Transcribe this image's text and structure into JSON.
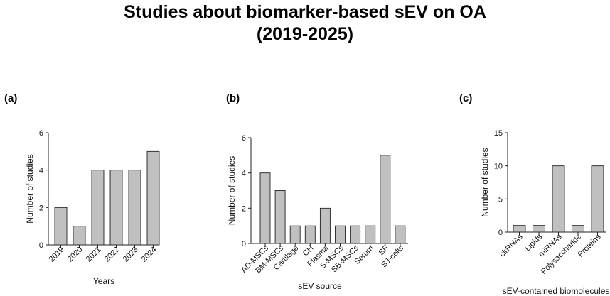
{
  "title": {
    "line1": "Studies about biomarker-based sEV on OA",
    "line2": "(2019-2025)"
  },
  "colors": {
    "bar_fill": "#c0c0c0",
    "bar_stroke": "#222222"
  },
  "chart_data": [
    {
      "panel": "(a)",
      "type": "bar",
      "title": "",
      "xlabel": "Years",
      "ylabel": "Number of studies",
      "categories": [
        "2019",
        "2020",
        "2021",
        "2022",
        "2023",
        "2024"
      ],
      "values": [
        2,
        1,
        4,
        4,
        4,
        5
      ],
      "ylim": [
        0,
        6
      ],
      "yticks": [
        0,
        2,
        4,
        6
      ],
      "grid": false
    },
    {
      "panel": "(b)",
      "type": "bar",
      "title": "",
      "xlabel": "sEV source",
      "ylabel": "Number of studies",
      "categories": [
        "AD-MSCs",
        "BM-MSCs",
        "Cartilage",
        "CH",
        "Plasma",
        "S-MSCs",
        "SB-MSCs",
        "Serum",
        "SF",
        "SJ-cells"
      ],
      "values": [
        4,
        3,
        1,
        1,
        2,
        1,
        1,
        1,
        5,
        1
      ],
      "ylim": [
        0,
        6
      ],
      "yticks": [
        0,
        2,
        4,
        6
      ],
      "grid": false
    },
    {
      "panel": "(c)",
      "type": "bar",
      "title": "",
      "xlabel": "sEV-contained biomolecules",
      "ylabel": "Number of studies",
      "categories": [
        "cirRNAs",
        "Lipids",
        "miRNAs",
        "Polysaccharide",
        "Proteins"
      ],
      "values": [
        1,
        1,
        10,
        1,
        10
      ],
      "ylim": [
        0,
        15
      ],
      "yticks": [
        0,
        5,
        10,
        15
      ],
      "grid": false
    }
  ]
}
